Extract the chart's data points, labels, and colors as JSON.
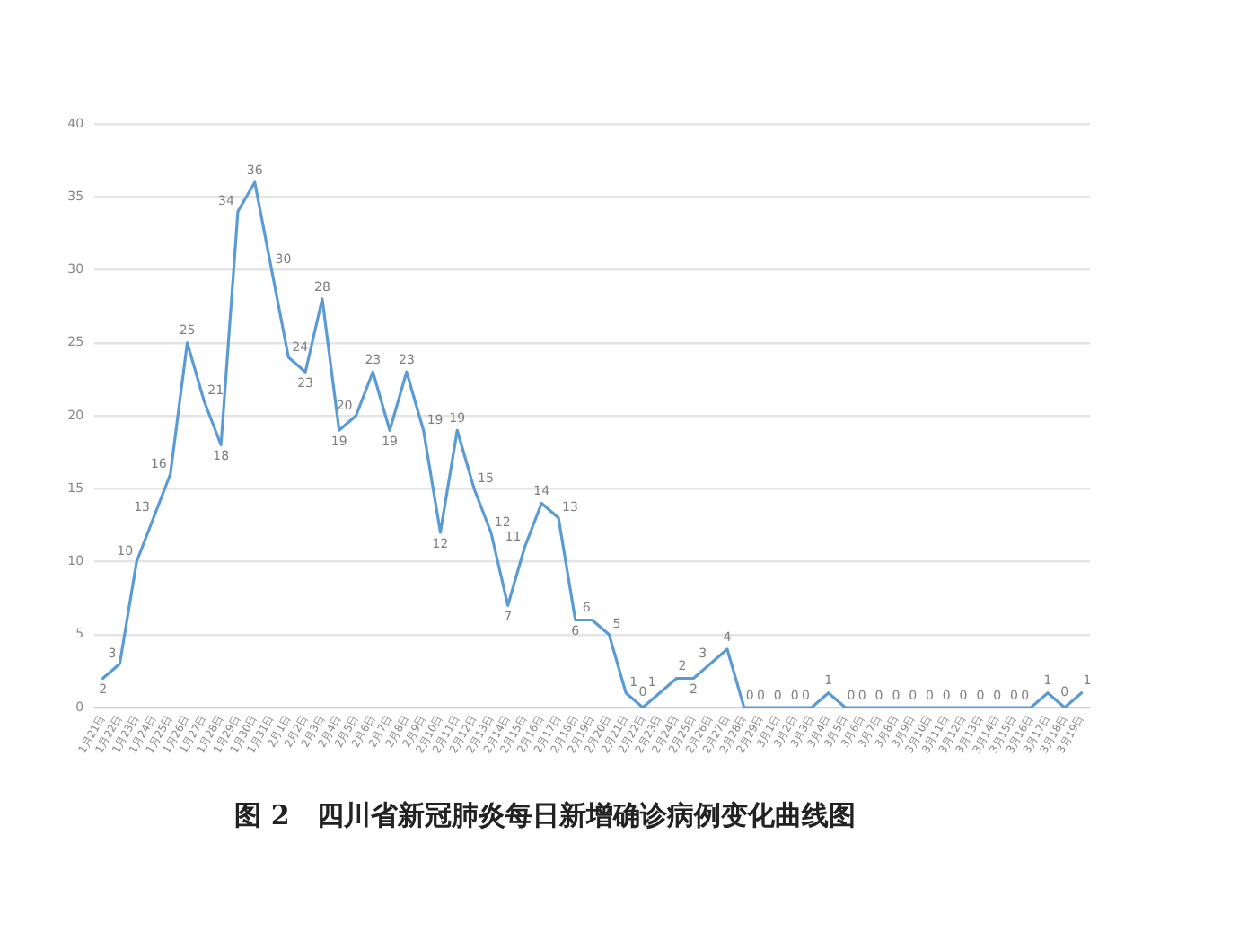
{
  "chart_data": {
    "type": "line",
    "title": "图 2　四川省新冠肺炎每日新增确诊病例变化曲线图",
    "categories": [
      "1月21日",
      "1月22日",
      "1月23日",
      "1月24日",
      "1月25日",
      "1月26日",
      "1月27日",
      "1月28日",
      "1月29日",
      "1月30日",
      "1月31日",
      "2月1日",
      "2月2日",
      "2月3日",
      "2月4日",
      "2月5日",
      "2月6日",
      "2月7日",
      "2月8日",
      "2月9日",
      "2月10日",
      "2月11日",
      "2月12日",
      "2月13日",
      "2月14日",
      "2月15日",
      "2月16日",
      "2月17日",
      "2月18日",
      "2月19日",
      "2月20日",
      "2月21日",
      "2月22日",
      "2月23日",
      "2月24日",
      "2月25日",
      "2月26日",
      "2月27日",
      "2月28日",
      "2月29日",
      "3月1日",
      "3月2日",
      "3月3日",
      "3月4日",
      "3月5日",
      "3月6日",
      "3月7日",
      "3月8日",
      "3月9日",
      "3月10日",
      "3月11日",
      "3月12日",
      "3月13日",
      "3月14日",
      "3月15日",
      "3月16日",
      "3月17日",
      "3月18日",
      "3月19日"
    ],
    "series": [
      {
        "color": "#5b9bd5",
        "values": [
          2,
          3,
          10,
          13,
          16,
          25,
          21,
          18,
          34,
          36,
          30,
          24,
          23,
          28,
          19,
          20,
          23,
          19,
          23,
          19,
          12,
          19,
          15,
          12,
          7,
          11,
          14,
          13,
          6,
          6,
          5,
          1,
          0,
          1,
          2,
          2,
          3,
          4,
          0,
          0,
          0,
          0,
          0,
          1,
          0,
          0,
          0,
          0,
          0,
          0,
          0,
          0,
          0,
          0,
          0,
          0,
          1,
          0,
          1
        ]
      }
    ],
    "ylim": [
      0,
      40
    ],
    "yticks": [
      0,
      5,
      10,
      15,
      20,
      25,
      30,
      35,
      40
    ],
    "grid": "y",
    "marker": "none",
    "data_labels": true
  }
}
